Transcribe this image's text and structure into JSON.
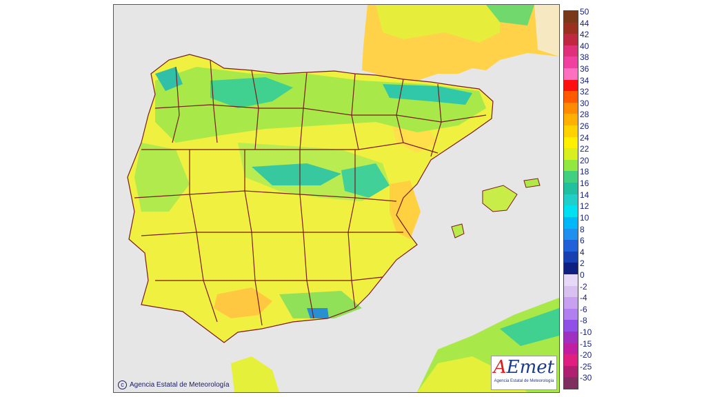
{
  "footer": {
    "copyright_text": "Agencia Estatal de Meteorología",
    "copyright_icon": "copyright-icon"
  },
  "logo": {
    "mark_a": "A",
    "mark_rest": "Emet",
    "subtitle": "Agencia Estatal de Meteorología"
  },
  "legend": {
    "entries": [
      {
        "label": "50",
        "color": "#7a3a1a"
      },
      {
        "label": "44",
        "color": "#9b3020"
      },
      {
        "label": "42",
        "color": "#c02840"
      },
      {
        "label": "40",
        "color": "#e0307a"
      },
      {
        "label": "38",
        "color": "#f040a0"
      },
      {
        "label": "36",
        "color": "#ff70c0"
      },
      {
        "label": "34",
        "color": "#ff1010"
      },
      {
        "label": "32",
        "color": "#ff5a00"
      },
      {
        "label": "30",
        "color": "#ff8c00"
      },
      {
        "label": "28",
        "color": "#ffb000"
      },
      {
        "label": "26",
        "color": "#ffd200"
      },
      {
        "label": "24",
        "color": "#fff000"
      },
      {
        "label": "22",
        "color": "#d8f020"
      },
      {
        "label": "20",
        "color": "#90e840"
      },
      {
        "label": "18",
        "color": "#40d080"
      },
      {
        "label": "16",
        "color": "#20c0a0"
      },
      {
        "label": "14",
        "color": "#20d0c8"
      },
      {
        "label": "12",
        "color": "#00e0f0"
      },
      {
        "label": "10",
        "color": "#00b8f8"
      },
      {
        "label": "8",
        "color": "#2090f0"
      },
      {
        "label": "6",
        "color": "#2060d8"
      },
      {
        "label": "4",
        "color": "#1840b0"
      },
      {
        "label": "2",
        "color": "#102080"
      },
      {
        "label": "0",
        "color": "#e8d8f8"
      },
      {
        "label": "-2",
        "color": "#d8c0f0"
      },
      {
        "label": "-4",
        "color": "#c8a0f0"
      },
      {
        "label": "-6",
        "color": "#b080f0"
      },
      {
        "label": "-8",
        "color": "#9050e8"
      },
      {
        "label": "-10",
        "color": "#a030c0"
      },
      {
        "label": "-15",
        "color": "#c020a0"
      },
      {
        "label": "-20",
        "color": "#e02080"
      },
      {
        "label": "-25",
        "color": "#b02070"
      },
      {
        "label": "-30",
        "color": "#803060"
      }
    ]
  },
  "colors": {
    "sea": "#e6e6e6",
    "land_base": "#f0f040",
    "land_warm": "#ffd24a",
    "land_mild": "#a8e848",
    "land_cool": "#40d090",
    "land_cold": "#20b8b0",
    "border": "#7a1a1a"
  }
}
